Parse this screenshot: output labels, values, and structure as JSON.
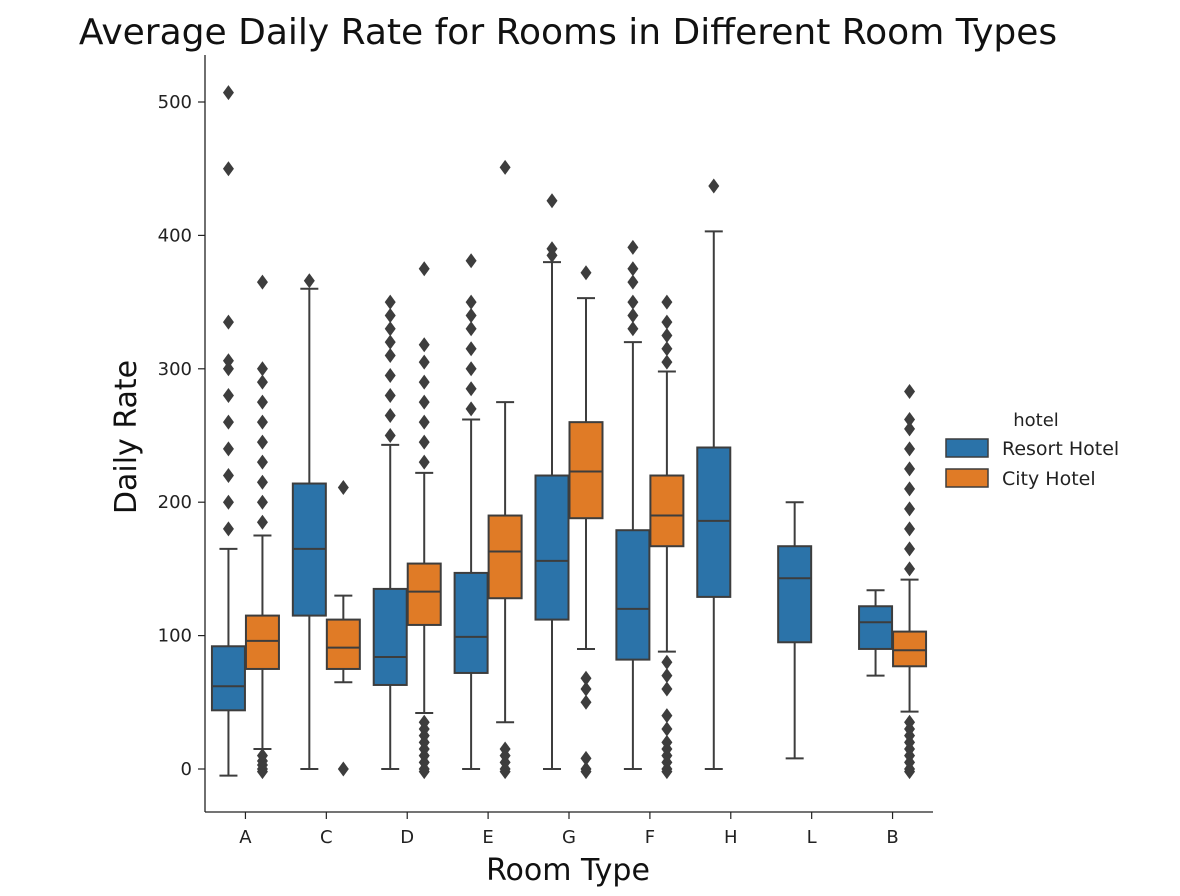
{
  "chart_data": {
    "type": "box",
    "title": "Average Daily Rate for Rooms in Different Room Types",
    "xlabel": "Room Type",
    "ylabel": "Daily Rate",
    "ylim": [
      -30,
      535
    ],
    "yticks": [
      0,
      100,
      200,
      300,
      400,
      500
    ],
    "categories": [
      "A",
      "C",
      "D",
      "E",
      "G",
      "F",
      "H",
      "L",
      "B"
    ],
    "legend": {
      "title": "hotel",
      "position": "right"
    },
    "series": [
      {
        "name": "Resort Hotel",
        "color": "#2b73a9",
        "boxes": [
          {
            "whislo": -5,
            "q1": 44,
            "med": 62,
            "q3": 92,
            "whishi": 165,
            "fliers_low": [],
            "fliers_high": [
              180,
              200,
              220,
              240,
              260,
              280,
              300,
              306,
              335,
              450,
              507
            ]
          },
          {
            "whislo": 0,
            "q1": 115,
            "med": 165,
            "q3": 214,
            "whishi": 360,
            "fliers_low": [],
            "fliers_high": [
              366
            ]
          },
          {
            "whislo": 0,
            "q1": 63,
            "med": 84,
            "q3": 135,
            "whishi": 243,
            "fliers_low": [],
            "fliers_high": [
              250,
              265,
              280,
              295,
              310,
              320,
              330,
              340,
              350
            ]
          },
          {
            "whislo": 0,
            "q1": 72,
            "med": 99,
            "q3": 147,
            "whishi": 262,
            "fliers_low": [],
            "fliers_high": [
              270,
              285,
              300,
              315,
              330,
              340,
              350,
              381
            ]
          },
          {
            "whislo": 0,
            "q1": 112,
            "med": 156,
            "q3": 220,
            "whishi": 380,
            "fliers_low": [],
            "fliers_high": [
              385,
              390,
              426
            ]
          },
          {
            "whislo": 0,
            "q1": 82,
            "med": 120,
            "q3": 179,
            "whishi": 320,
            "fliers_low": [],
            "fliers_high": [
              330,
              340,
              350,
              365,
              375,
              391
            ]
          },
          {
            "whislo": 0,
            "q1": 129,
            "med": 186,
            "q3": 241,
            "whishi": 403,
            "fliers_low": [],
            "fliers_high": [
              437
            ]
          },
          {
            "whislo": 8,
            "q1": 95,
            "med": 143,
            "q3": 167,
            "whishi": 200,
            "fliers_low": [],
            "fliers_high": []
          },
          {
            "whislo": 70,
            "q1": 90,
            "med": 110,
            "q3": 122,
            "whishi": 134,
            "fliers_low": [],
            "fliers_high": []
          }
        ]
      },
      {
        "name": "City Hotel",
        "color": "#e07b26",
        "boxes": [
          {
            "whislo": 15,
            "q1": 75,
            "med": 96,
            "q3": 115,
            "whishi": 175,
            "fliers_low": [
              -2,
              0,
              3,
              6,
              10
            ],
            "fliers_high": [
              185,
              200,
              215,
              230,
              245,
              260,
              275,
              290,
              300,
              365
            ]
          },
          {
            "whislo": 65,
            "q1": 75,
            "med": 91,
            "q3": 112,
            "whishi": 130,
            "fliers_low": [
              0
            ],
            "fliers_high": [
              211
            ]
          },
          {
            "whislo": 42,
            "q1": 108,
            "med": 133,
            "q3": 154,
            "whishi": 222,
            "fliers_low": [
              -2,
              0,
              5,
              10,
              15,
              20,
              25,
              30,
              35
            ],
            "fliers_high": [
              230,
              245,
              260,
              275,
              290,
              305,
              318,
              375
            ]
          },
          {
            "whislo": 35,
            "q1": 128,
            "med": 163,
            "q3": 190,
            "whishi": 275,
            "fliers_low": [
              -2,
              0,
              5,
              10,
              15
            ],
            "fliers_high": [
              451
            ]
          },
          {
            "whislo": 90,
            "q1": 188,
            "med": 223,
            "q3": 260,
            "whishi": 353,
            "fliers_low": [
              -2,
              0,
              8,
              50,
              60,
              68
            ],
            "fliers_high": [
              372
            ]
          },
          {
            "whislo": 88,
            "q1": 167,
            "med": 190,
            "q3": 220,
            "whishi": 298,
            "fliers_low": [
              -2,
              0,
              5,
              10,
              15,
              20,
              30,
              40,
              60,
              70,
              80
            ],
            "fliers_high": [
              305,
              315,
              325,
              335,
              350
            ]
          },
          null,
          null,
          {
            "whislo": 43,
            "q1": 77,
            "med": 89,
            "q3": 103,
            "whishi": 142,
            "fliers_low": [
              -2,
              0,
              5,
              10,
              15,
              20,
              25,
              30,
              35
            ],
            "fliers_high": [
              150,
              165,
              180,
              195,
              210,
              225,
              240,
              255,
              262,
              283
            ]
          }
        ]
      }
    ]
  }
}
